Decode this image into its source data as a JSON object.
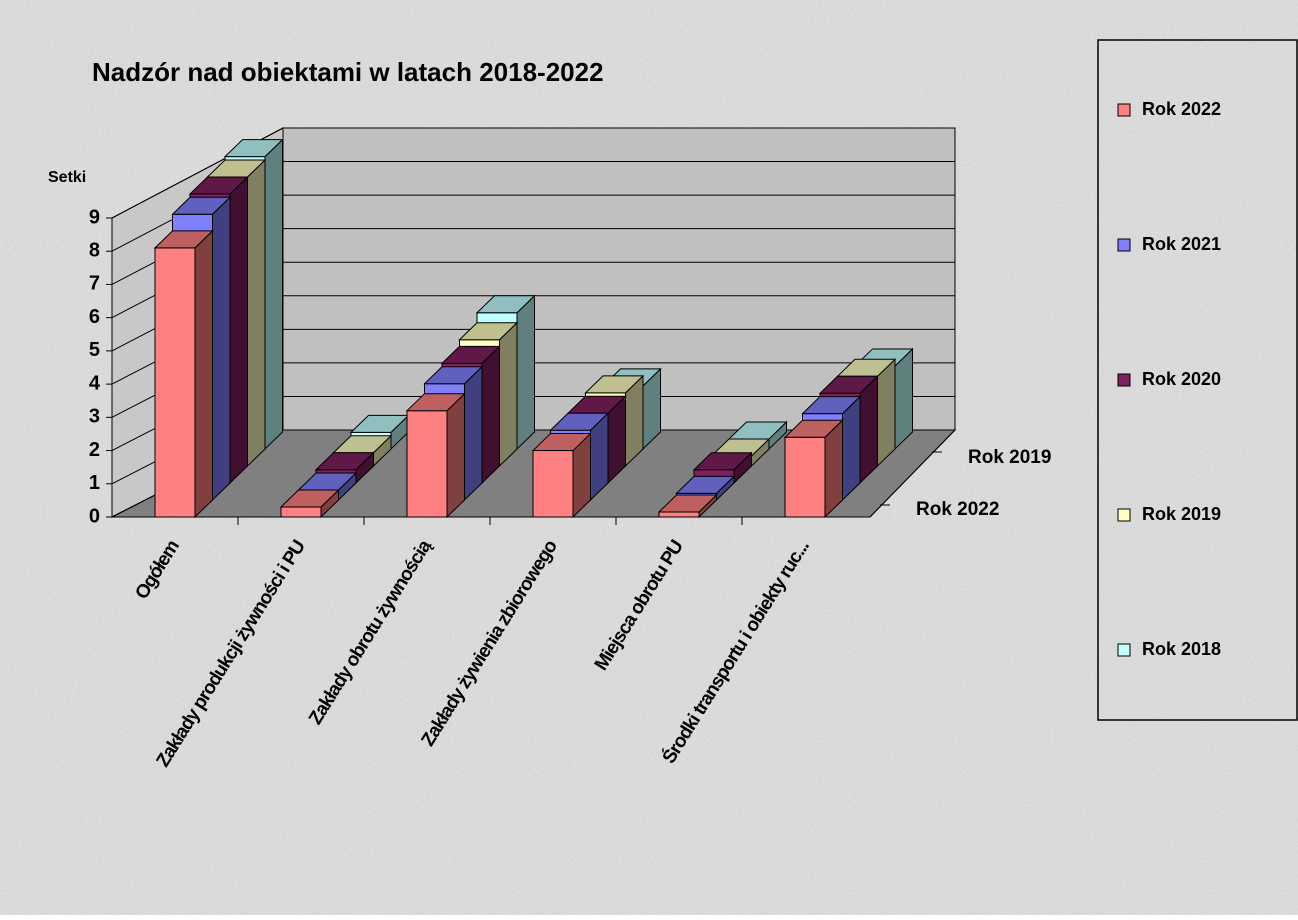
{
  "chart_data": {
    "type": "bar3d",
    "title": "Nadzór nad obiektami w latach 2018-2022",
    "ylabel": "Setki",
    "categories": [
      "Ogółem",
      "Zakłady produkcji żywności i PU",
      "Zakłady obrotu żywnością",
      "Zakłady żywienia zbiorowego",
      "Miejsca obrotu PU",
      "Środki transportu i obiekty ruc..."
    ],
    "series": [
      {
        "name": "Rok 2022",
        "color": "#ff8080",
        "values": [
          8.1,
          0.3,
          3.2,
          2.0,
          0.15,
          2.4
        ]
      },
      {
        "name": "Rok 2021",
        "color": "#8080ff",
        "values": [
          8.6,
          0.3,
          3.5,
          2.1,
          0.2,
          2.6
        ]
      },
      {
        "name": "Rok 2020",
        "color": "#802060",
        "values": [
          8.7,
          0.4,
          3.6,
          2.1,
          0.4,
          2.7
        ]
      },
      {
        "name": "Rok 2019",
        "color": "#ffffc0",
        "values": [
          8.7,
          0.4,
          3.8,
          2.2,
          0.3,
          2.7
        ]
      },
      {
        "name": "Rok 2018",
        "color": "#c0ffff",
        "values": [
          8.8,
          0.5,
          4.1,
          1.9,
          0.3,
          2.5
        ]
      }
    ],
    "ylim": [
      0,
      9
    ],
    "yticks": [
      0,
      1,
      2,
      3,
      4,
      5,
      6,
      7,
      8,
      9
    ],
    "grid": true,
    "legend": "right"
  }
}
